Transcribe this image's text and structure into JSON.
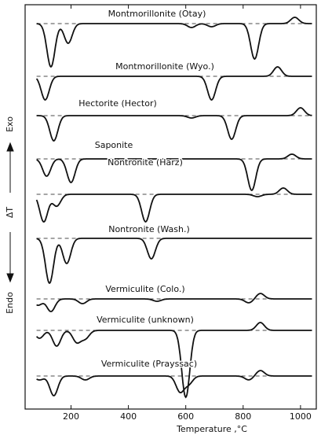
{
  "chart_data": {
    "type": "line",
    "xlabel": "Temperature ,°C",
    "ylabel": "ΔT",
    "exo_label": "Exo",
    "endo_label": "Endo",
    "xlim": [
      40,
      1055
    ],
    "xticks": [
      200,
      400,
      600,
      800,
      1000
    ],
    "ylim": [
      -100,
      20
    ],
    "series": [
      {
        "name": "Montmorillonite (Otay)",
        "color": "#111",
        "x": [
          130,
          190,
          620,
          690,
          840,
          980
        ],
        "values": [
          -55,
          -25,
          -5,
          -4,
          -45,
          8
        ]
      },
      {
        "name": "Montmorillonite (Wyo.)",
        "color": "#111",
        "x": [
          110,
          690,
          920
        ],
        "values": [
          -30,
          -30,
          12
        ]
      },
      {
        "name": "Hectorite (Hector)",
        "color": "#111",
        "x": [
          140,
          620,
          760,
          1000
        ],
        "values": [
          -32,
          -3,
          -30,
          10
        ]
      },
      {
        "name": "Saponite",
        "color": "#111",
        "x": [
          115,
          200,
          830,
          970
        ],
        "values": [
          -22,
          -30,
          -40,
          6
        ]
      },
      {
        "name": "Nontronite (Harz)",
        "color": "#111",
        "x": [
          105,
          150,
          460,
          850,
          940
        ],
        "values": [
          -35,
          -15,
          -35,
          -3,
          8
        ]
      },
      {
        "name": "Nontronite (Wash.)",
        "color": "#111",
        "x": [
          125,
          185,
          480
        ],
        "values": [
          -57,
          -32,
          -26
        ]
      },
      {
        "name": "Vermiculite (Colo.)",
        "color": "#111",
        "x": [
          85,
          130,
          240,
          500,
          820,
          860
        ],
        "values": [
          -8,
          -16,
          -6,
          -3,
          -5,
          7
        ]
      },
      {
        "name": "Vermiculite (unknown)",
        "color": "#111",
        "x": [
          90,
          150,
          220,
          250,
          600,
          860
        ],
        "values": [
          -10,
          -20,
          -15,
          -10,
          -85,
          10
        ]
      },
      {
        "name": "Vermiculite (Prayssac)",
        "color": "#111",
        "x": [
          90,
          140,
          250,
          580,
          610,
          820,
          860
        ],
        "values": [
          -5,
          -25,
          -5,
          -20,
          -10,
          -5,
          7
        ]
      }
    ]
  }
}
